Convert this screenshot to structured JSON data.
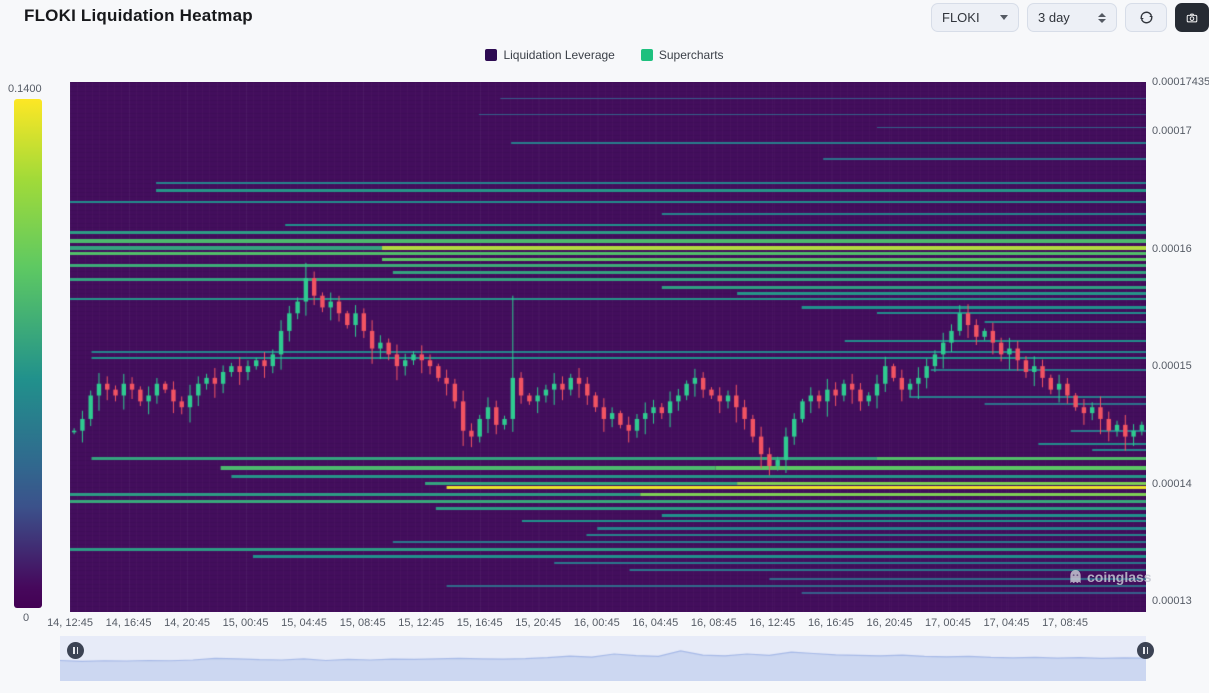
{
  "header": {
    "title": "FLOKI Liquidation Heatmap",
    "symbol_select": {
      "value": "FLOKI"
    },
    "period_select": {
      "value": "3 day"
    }
  },
  "legend": {
    "items": [
      {
        "label": "Liquidation Leverage",
        "color": "#2d0b52"
      },
      {
        "label": "Supercharts",
        "color": "#1ec07e"
      }
    ]
  },
  "colorbar": {
    "max_label": "0.1400",
    "min_label": "0",
    "gradient_stops": [
      "#fde725 0%",
      "#a0da39 16%",
      "#5ec962 33%",
      "#21918c 55%",
      "#31688e 72%",
      "#3b528b 80%",
      "#46085c 96%",
      "#440154 100%"
    ]
  },
  "watermark": {
    "text": "coinglass"
  },
  "chart_data": {
    "type": "heatmap",
    "title": "FLOKI Liquidation Heatmap",
    "legend": [
      "Liquidation Leverage",
      "Supercharts"
    ],
    "colorbar_range": [
      0,
      0.14
    ],
    "price_scale": 1e-05,
    "background_color": "#430e5d",
    "viridis_stops": [
      [
        68,
        1,
        84
      ],
      [
        59,
        82,
        139
      ],
      [
        33,
        145,
        140
      ],
      [
        94,
        201,
        98
      ],
      [
        253,
        231,
        37
      ]
    ],
    "x_axis": {
      "labels": [
        "14, 12:45",
        "14, 16:45",
        "14, 20:45",
        "15, 00:45",
        "15, 04:45",
        "15, 08:45",
        "15, 12:45",
        "15, 16:45",
        "15, 20:45",
        "16, 00:45",
        "16, 04:45",
        "16, 08:45",
        "16, 12:45",
        "16, 16:45",
        "16, 20:45",
        "17, 00:45",
        "17, 04:45",
        "17, 08:45"
      ]
    },
    "y_axis": {
      "min": 12.906,
      "max": 17.42,
      "ticks": [
        [
          "0.000174354",
          17.42
        ],
        [
          "0.00017",
          17
        ],
        [
          "0.00016",
          16
        ],
        [
          "0.00015",
          15
        ],
        [
          "0.00014",
          14
        ],
        [
          "0.00013",
          13
        ]
      ]
    },
    "bands_format": [
      "price",
      "x0_frac",
      "x1_frac",
      "intensity_0to1",
      "thickness_px"
    ],
    "bands": [
      [
        17.28,
        0.4,
        1,
        0.28,
        1
      ],
      [
        17.14,
        0.38,
        1,
        0.3,
        1
      ],
      [
        17.03,
        0.75,
        1,
        0.3,
        1
      ],
      [
        16.9,
        0.41,
        1,
        0.42,
        2
      ],
      [
        16.76,
        0.7,
        1,
        0.38,
        2
      ],
      [
        16.56,
        0.08,
        1,
        0.45,
        2
      ],
      [
        16.5,
        0.08,
        1,
        0.52,
        3
      ],
      [
        16.4,
        0.0,
        1,
        0.48,
        2
      ],
      [
        16.3,
        0.55,
        1,
        0.45,
        2
      ],
      [
        16.2,
        0.2,
        1,
        0.5,
        2
      ],
      [
        16.14,
        0.0,
        1,
        0.55,
        3
      ],
      [
        16.07,
        0.0,
        1,
        0.68,
        4
      ],
      [
        16.01,
        0.0,
        0.29,
        0.58,
        4
      ],
      [
        16.01,
        0.29,
        1,
        0.88,
        4
      ],
      [
        15.96,
        0.0,
        1,
        0.7,
        3
      ],
      [
        15.91,
        0.29,
        1,
        0.74,
        3
      ],
      [
        15.86,
        0.0,
        1,
        0.62,
        3
      ],
      [
        15.8,
        0.3,
        1,
        0.58,
        3
      ],
      [
        15.74,
        0.0,
        1,
        0.58,
        3
      ],
      [
        15.67,
        0.55,
        1,
        0.56,
        3
      ],
      [
        15.62,
        0.62,
        1,
        0.52,
        3
      ],
      [
        15.57,
        0.0,
        1,
        0.52,
        2
      ],
      [
        15.5,
        0.68,
        1,
        0.5,
        3
      ],
      [
        15.45,
        0.75,
        1,
        0.48,
        2
      ],
      [
        15.38,
        0.85,
        1,
        0.45,
        2
      ],
      [
        15.21,
        0.72,
        1,
        0.48,
        2
      ],
      [
        15.12,
        0.02,
        1,
        0.45,
        2
      ],
      [
        15.07,
        0.02,
        1,
        0.5,
        2
      ],
      [
        14.97,
        0.8,
        1,
        0.4,
        2
      ],
      [
        14.74,
        0.78,
        1,
        0.42,
        2
      ],
      [
        14.68,
        0.85,
        1,
        0.38,
        2
      ],
      [
        14.45,
        0.93,
        1,
        0.4,
        2
      ],
      [
        14.34,
        0.9,
        1,
        0.48,
        2
      ],
      [
        14.29,
        0.95,
        1,
        0.45,
        2
      ],
      [
        14.21,
        0.02,
        0.75,
        0.58,
        3
      ],
      [
        14.21,
        0.75,
        1,
        0.7,
        3
      ],
      [
        14.13,
        0.14,
        0.6,
        0.68,
        4
      ],
      [
        14.13,
        0.6,
        1,
        0.74,
        4
      ],
      [
        14.06,
        0.15,
        1,
        0.52,
        3
      ],
      [
        14.0,
        0.33,
        0.62,
        0.58,
        3
      ],
      [
        14.0,
        0.62,
        1,
        0.8,
        3
      ],
      [
        13.97,
        0.35,
        1,
        0.97,
        3
      ],
      [
        13.91,
        0.0,
        0.53,
        0.55,
        3
      ],
      [
        13.91,
        0.53,
        1,
        0.8,
        3
      ],
      [
        13.85,
        0.0,
        1,
        0.6,
        3
      ],
      [
        13.79,
        0.34,
        1,
        0.55,
        3
      ],
      [
        13.73,
        0.55,
        1,
        0.5,
        3
      ],
      [
        13.68,
        0.42,
        1,
        0.5,
        2
      ],
      [
        13.62,
        0.49,
        1,
        0.45,
        3
      ],
      [
        13.56,
        0.48,
        1,
        0.44,
        2
      ],
      [
        13.5,
        0.3,
        1,
        0.4,
        2
      ],
      [
        13.44,
        0.0,
        1,
        0.55,
        3
      ],
      [
        13.38,
        0.17,
        1,
        0.5,
        3
      ],
      [
        13.32,
        0.45,
        1,
        0.4,
        2
      ],
      [
        13.26,
        0.52,
        1,
        0.4,
        2
      ],
      [
        13.19,
        0.65,
        1,
        0.35,
        2
      ],
      [
        13.13,
        0.35,
        1,
        0.35,
        2
      ],
      [
        13.07,
        0.68,
        1,
        0.3,
        2
      ]
    ],
    "candles": {
      "up_color": "#2fcb90",
      "down_color": "#f25462",
      "closes": [
        14.45,
        14.55,
        14.75,
        14.85,
        14.8,
        14.75,
        14.85,
        14.8,
        14.7,
        14.75,
        14.85,
        14.8,
        14.7,
        14.65,
        14.75,
        14.85,
        14.9,
        14.85,
        14.95,
        15.0,
        14.95,
        15.0,
        15.05,
        15.0,
        15.1,
        15.3,
        15.45,
        15.55,
        15.75,
        15.6,
        15.5,
        15.55,
        15.45,
        15.35,
        15.45,
        15.3,
        15.15,
        15.2,
        15.1,
        15.0,
        15.05,
        15.1,
        15.05,
        15.0,
        14.9,
        14.85,
        14.7,
        14.45,
        14.4,
        14.55,
        14.65,
        14.5,
        14.55,
        14.9,
        14.75,
        14.7,
        14.75,
        14.8,
        14.85,
        14.8,
        14.9,
        14.85,
        14.75,
        14.65,
        14.55,
        14.6,
        14.5,
        14.45,
        14.55,
        14.6,
        14.65,
        14.6,
        14.7,
        14.75,
        14.85,
        14.9,
        14.8,
        14.75,
        14.7,
        14.75,
        14.65,
        14.55,
        14.4,
        14.25,
        14.15,
        14.2,
        14.4,
        14.55,
        14.7,
        14.75,
        14.7,
        14.8,
        14.75,
        14.85,
        14.8,
        14.7,
        14.75,
        14.85,
        15.0,
        14.9,
        14.8,
        14.85,
        14.9,
        15.0,
        15.1,
        15.2,
        15.3,
        15.45,
        15.35,
        15.25,
        15.3,
        15.2,
        15.1,
        15.15,
        15.05,
        14.95,
        15.0,
        14.9,
        14.8,
        14.85,
        14.75,
        14.65,
        14.6,
        14.65,
        14.55,
        14.45,
        14.5,
        14.4,
        14.45,
        14.5
      ],
      "wick_spikes": {
        "28": 15.88,
        "53": 15.6,
        "98": 15.08,
        "107": 15.52
      }
    },
    "navigator": {
      "values": [
        0.25,
        0.22,
        0.24,
        0.23,
        0.25,
        0.24,
        0.27,
        0.33,
        0.31,
        0.28,
        0.27,
        0.31,
        0.25,
        0.29,
        0.27,
        0.3,
        0.29,
        0.31,
        0.33,
        0.31,
        0.3,
        0.32,
        0.36,
        0.42,
        0.38,
        0.5,
        0.44,
        0.41,
        0.62,
        0.46,
        0.43,
        0.5,
        0.45,
        0.57,
        0.52,
        0.47,
        0.45,
        0.43,
        0.46,
        0.41,
        0.39,
        0.41,
        0.37,
        0.35,
        0.37,
        0.34,
        0.36,
        0.33,
        0.35,
        0.34
      ],
      "fill_color": "#ccd7f1",
      "line_color": "#a7baе8",
      "track_color": "#e7ebf8"
    }
  }
}
